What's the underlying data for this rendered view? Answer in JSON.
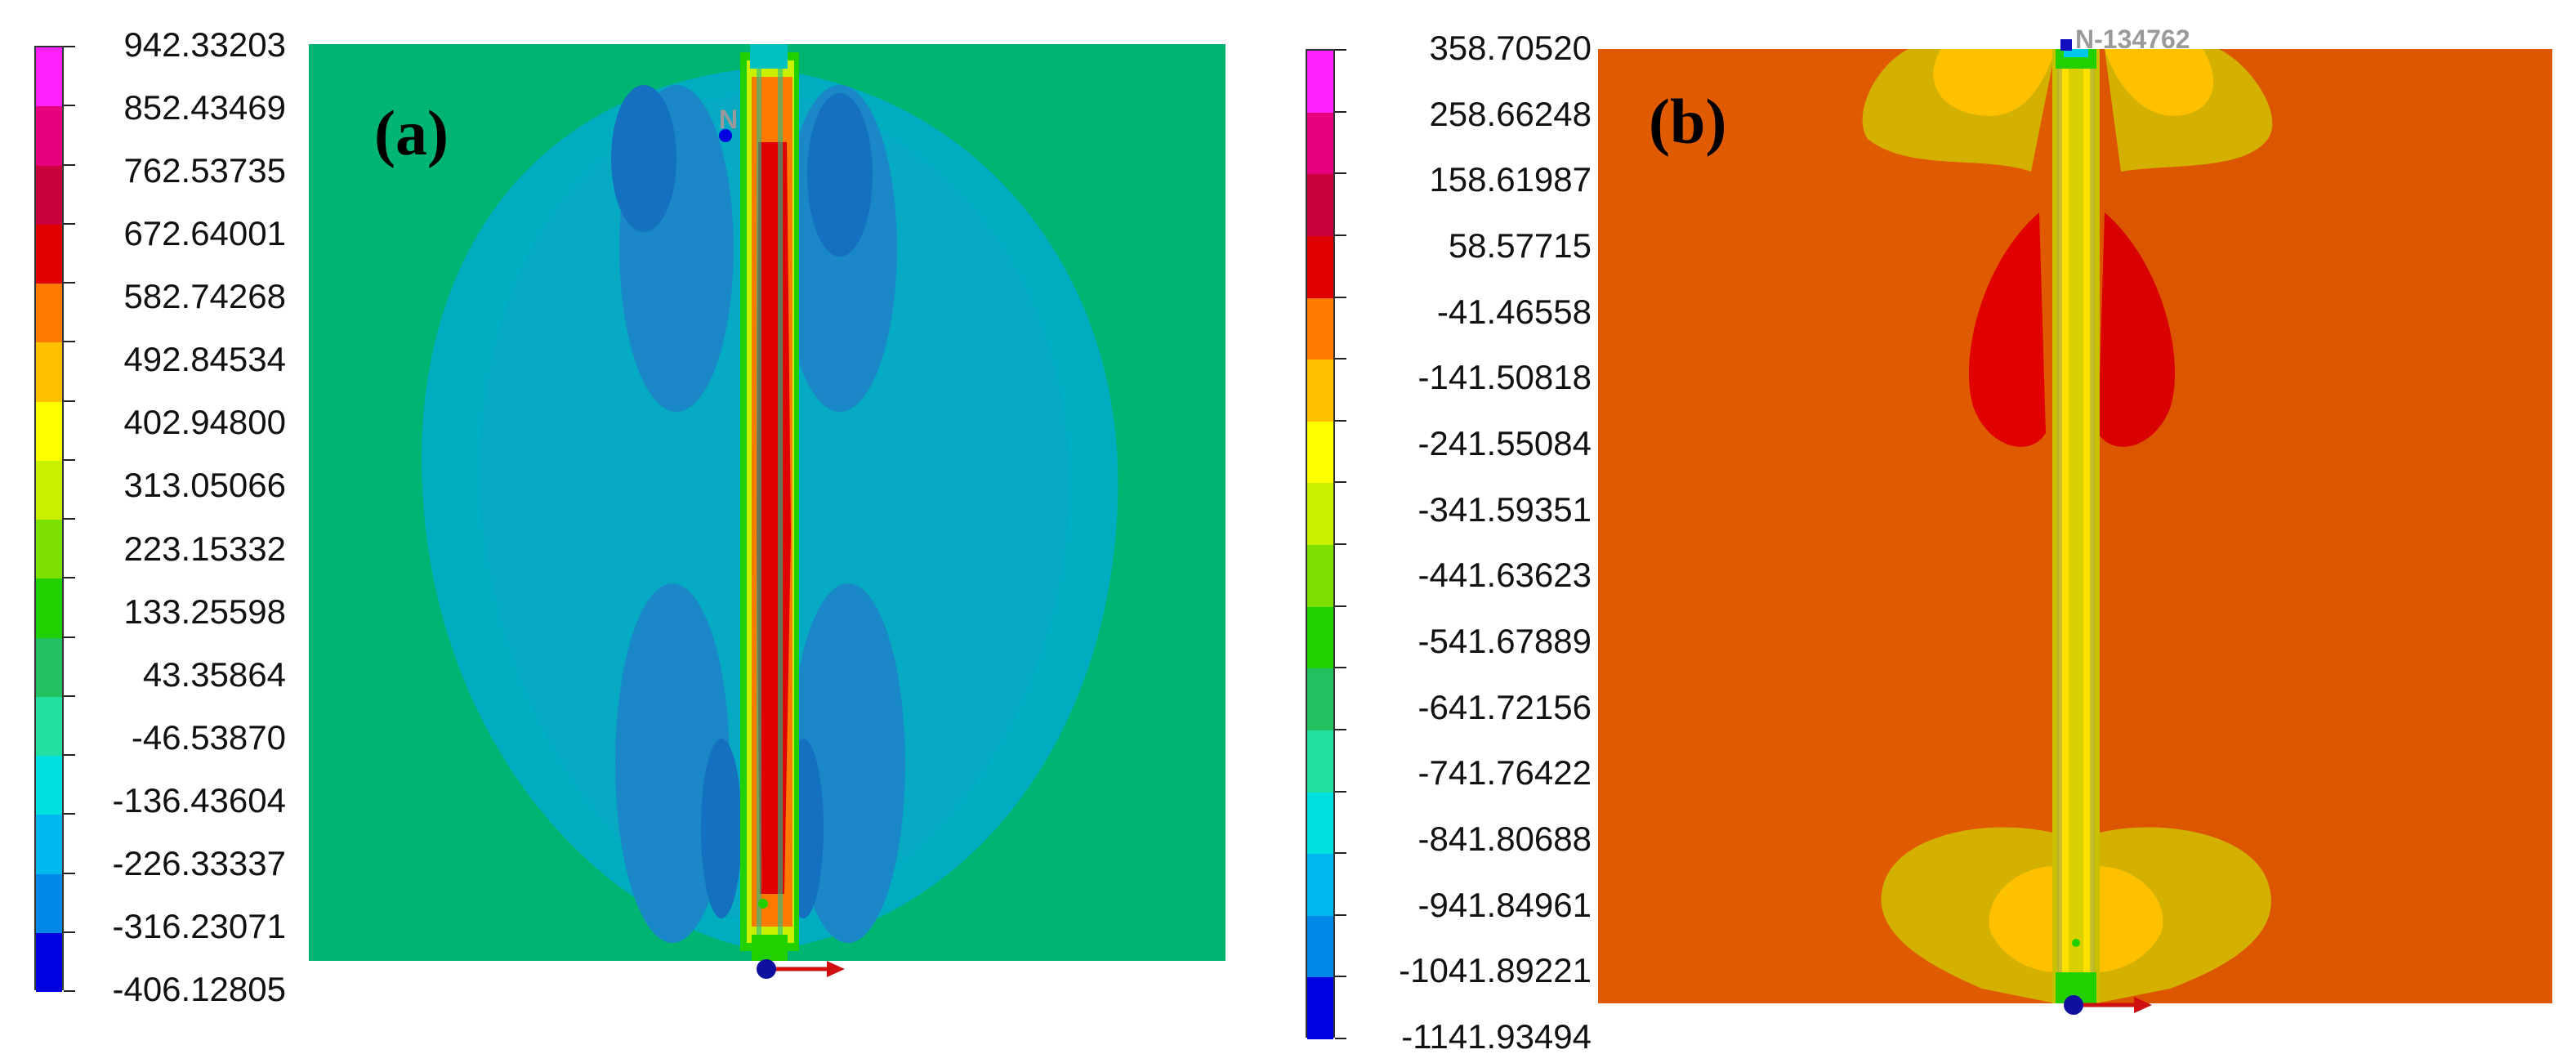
{
  "panels": [
    {
      "label": "(a)",
      "node_label": "N",
      "legend": {
        "values": [
          "942.33203",
          "852.43469",
          "762.53735",
          "672.64001",
          "582.74268",
          "492.84534",
          "402.94800",
          "313.05066",
          "223.15332",
          "133.25598",
          "43.35864",
          "-46.53870",
          "-136.43604",
          "-226.33337",
          "-316.23071",
          "-406.12805"
        ],
        "colors": [
          "#ff22ff",
          "#e6007e",
          "#c8003c",
          "#e00000",
          "#ff7a00",
          "#ffc000",
          "#ffff00",
          "#c8f000",
          "#7ee000",
          "#22d000",
          "#22c060",
          "#22e0a0",
          "#00e0e0",
          "#00b8f0",
          "#0088e8",
          "#0000e0"
        ]
      }
    },
    {
      "label": "(b)",
      "node_label": "N-134762",
      "legend": {
        "values": [
          "358.70520",
          "258.66248",
          "158.61987",
          "58.57715",
          "-41.46558",
          "-141.50818",
          "-241.55084",
          "-341.59351",
          "-441.63623",
          "-541.67889",
          "-641.72156",
          "-741.76422",
          "-841.80688",
          "-941.84961",
          "-1041.89221",
          "-1141.93494"
        ],
        "colors": [
          "#ff22ff",
          "#e6007e",
          "#c8003c",
          "#e00000",
          "#ff7a00",
          "#ffc000",
          "#ffff00",
          "#c8f000",
          "#7ee000",
          "#22d000",
          "#22c060",
          "#22e0a0",
          "#00e0e0",
          "#00b8f0",
          "#0088e8",
          "#0000e0"
        ]
      }
    }
  ]
}
